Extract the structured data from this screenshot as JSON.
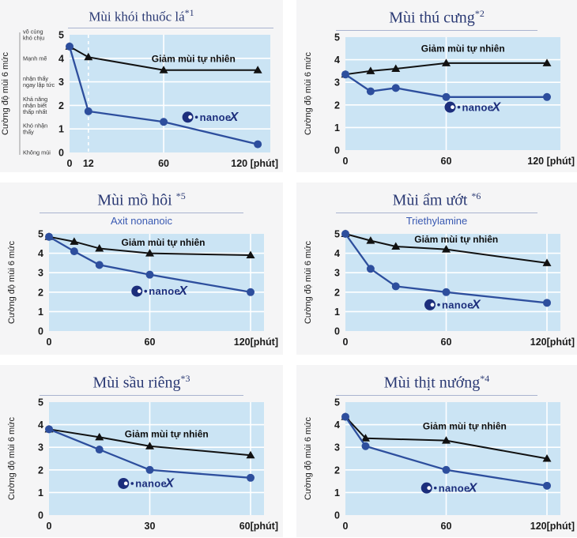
{
  "colors": {
    "page_background": "#ffffff",
    "panel_background": "#f5f5f6",
    "title": "#2b3a74",
    "title_underline": "#a9b3cf",
    "subtitle": "#3a5ab2",
    "plot_bg": "#cbe4f4",
    "grid": "#ffffff",
    "natural_series": "#111111",
    "nanoe_series": "#2d4e9d",
    "axis_text": "#1a1a1a",
    "scale_label_text": "#333333",
    "logo": "#1c2e7c"
  },
  "legend": {
    "natural_label": "Giảm mùi tự nhiên",
    "nanoe_label": "nanoe",
    "nanoe_x": "X"
  },
  "chart_data": [
    {
      "key": "cigarette-smoke",
      "type": "line",
      "title": "Mùi khói thuốc lá",
      "title_marker": "*1",
      "ylabel": "Cường độ mùi 6 mức",
      "ylim": [
        0,
        5
      ],
      "xlim": [
        0,
        128
      ],
      "y_ticks": [
        0,
        1,
        2,
        3,
        4,
        5
      ],
      "x_ticks": [
        {
          "x": 0,
          "label": "0"
        },
        {
          "x": 12,
          "label": "12"
        },
        {
          "x": 60,
          "label": "60"
        },
        {
          "x": 120,
          "label": "120 [phút]"
        }
      ],
      "v_gridlines": [
        {
          "x": 12,
          "dashed": true
        },
        {
          "x": 60,
          "dashed": false
        }
      ],
      "series": [
        {
          "name": "Giảm mùi tự nhiên",
          "marker": "triangle",
          "x": [
            0,
            12,
            60,
            120
          ],
          "values": [
            4.5,
            4.05,
            3.5,
            3.5
          ]
        },
        {
          "name": "nanoe X",
          "marker": "circle",
          "x": [
            0,
            12,
            60,
            120
          ],
          "values": [
            4.5,
            1.75,
            1.3,
            0.35
          ]
        }
      ],
      "natural_label_pos": {
        "x": 79,
        "y": 3.85
      },
      "logo_pos": {
        "x": 90,
        "y": 1.5
      },
      "scale_labels": [
        {
          "level": 5,
          "lines": [
            "vô cùng",
            "khó chịu"
          ]
        },
        {
          "level": 4,
          "lines": [
            "Mạnh mẽ"
          ]
        },
        {
          "level": 3,
          "lines": [
            "nhận thấy",
            "ngay lập tức"
          ]
        },
        {
          "level": 2,
          "lines": [
            "Khả năng",
            "nhận biết",
            "thấp nhất"
          ]
        },
        {
          "level": 1,
          "lines": [
            "Khó nhận",
            "thấy"
          ]
        },
        {
          "level": 0,
          "lines": [
            "Không mùi"
          ]
        }
      ]
    },
    {
      "key": "pet",
      "type": "line",
      "title": "Mùi thú cưng",
      "title_marker": "*2",
      "ylabel": "Cường độ mùi 6 mức",
      "ylim": [
        0,
        5
      ],
      "xlim": [
        0,
        128
      ],
      "y_ticks": [
        0,
        1,
        2,
        3,
        4,
        5
      ],
      "x_ticks": [
        {
          "x": 0,
          "label": "0"
        },
        {
          "x": 60,
          "label": "60"
        },
        {
          "x": 120,
          "label": "120 [phút]"
        }
      ],
      "v_gridlines": [
        {
          "x": 60,
          "dashed": false
        }
      ],
      "series": [
        {
          "name": "Giảm mùi tự nhiên",
          "marker": "triangle",
          "x": [
            0,
            15,
            30,
            60,
            120
          ],
          "values": [
            3.35,
            3.5,
            3.6,
            3.85,
            3.85
          ]
        },
        {
          "name": "nanoe X",
          "marker": "circle",
          "x": [
            0,
            15,
            30,
            60,
            120
          ],
          "values": [
            3.35,
            2.6,
            2.75,
            2.35,
            2.35
          ]
        }
      ],
      "natural_label_pos": {
        "x": 70,
        "y": 4.35
      },
      "logo_pos": {
        "x": 76,
        "y": 1.9
      }
    },
    {
      "key": "sweat",
      "type": "line",
      "title": "Mùi mồ hôi ",
      "title_marker": "*5",
      "subtitle": "Axit nonanoic",
      "ylabel": "Cường độ mùi 6 mức",
      "ylim": [
        0,
        5
      ],
      "xlim": [
        0,
        128
      ],
      "y_ticks": [
        0,
        1,
        2,
        3,
        4,
        5
      ],
      "x_ticks": [
        {
          "x": 0,
          "label": "0"
        },
        {
          "x": 60,
          "label": "60"
        },
        {
          "x": 120,
          "label": "120[phút]"
        }
      ],
      "v_gridlines": [
        {
          "x": 60,
          "dashed": false
        },
        {
          "x": 120,
          "dashed": false
        }
      ],
      "series": [
        {
          "name": "Giảm mùi tự nhiên",
          "marker": "triangle",
          "x": [
            0,
            15,
            30,
            60,
            120
          ],
          "values": [
            4.85,
            4.6,
            4.25,
            4.0,
            3.9
          ]
        },
        {
          "name": "nanoe X",
          "marker": "circle",
          "x": [
            0,
            15,
            30,
            60,
            120
          ],
          "values": [
            4.85,
            4.1,
            3.4,
            2.9,
            2.0
          ]
        }
      ],
      "natural_label_pos": {
        "x": 68,
        "y": 4.4
      },
      "logo_pos": {
        "x": 66,
        "y": 2.05
      }
    },
    {
      "key": "damp",
      "type": "line",
      "title": "Mùi ẩm ướt ",
      "title_marker": "*6",
      "subtitle": "Triethylamine",
      "ylabel": "Cường độ mùi 6 mức",
      "ylim": [
        0,
        5
      ],
      "xlim": [
        0,
        128
      ],
      "y_ticks": [
        0,
        1,
        2,
        3,
        4,
        5
      ],
      "x_ticks": [
        {
          "x": 0,
          "label": "0"
        },
        {
          "x": 60,
          "label": "60"
        },
        {
          "x": 120,
          "label": "120[phút]"
        }
      ],
      "v_gridlines": [
        {
          "x": 60,
          "dashed": false
        },
        {
          "x": 120,
          "dashed": false
        }
      ],
      "series": [
        {
          "name": "Giảm mùi tự nhiên",
          "marker": "triangle",
          "x": [
            0,
            15,
            30,
            60,
            120
          ],
          "values": [
            5.0,
            4.65,
            4.35,
            4.2,
            3.5
          ]
        },
        {
          "name": "nanoe X",
          "marker": "circle",
          "x": [
            0,
            15,
            30,
            60,
            120
          ],
          "values": [
            5.0,
            3.2,
            2.3,
            2.0,
            1.45
          ]
        }
      ],
      "natural_label_pos": {
        "x": 66,
        "y": 4.55
      },
      "logo_pos": {
        "x": 64,
        "y": 1.35
      }
    },
    {
      "key": "durian",
      "type": "line",
      "title": "Mùi sầu riêng",
      "title_marker": "*3",
      "ylabel": "Cường độ mùi 6 mức",
      "ylim": [
        0,
        5
      ],
      "xlim": [
        0,
        64
      ],
      "y_ticks": [
        0,
        1,
        2,
        3,
        4,
        5
      ],
      "x_ticks": [
        {
          "x": 0,
          "label": "0"
        },
        {
          "x": 30,
          "label": "30"
        },
        {
          "x": 60,
          "label": "60[phút]"
        }
      ],
      "v_gridlines": [
        {
          "x": 30,
          "dashed": false
        },
        {
          "x": 60,
          "dashed": false
        }
      ],
      "series": [
        {
          "name": "Giảm mùi tự nhiên",
          "marker": "triangle",
          "x": [
            0,
            15,
            30,
            60
          ],
          "values": [
            3.8,
            3.45,
            3.05,
            2.65
          ]
        },
        {
          "name": "nanoe X",
          "marker": "circle",
          "x": [
            0,
            15,
            30,
            60
          ],
          "values": [
            3.8,
            2.9,
            2.0,
            1.65
          ]
        }
      ],
      "natural_label_pos": {
        "x": 35,
        "y": 3.45
      },
      "logo_pos": {
        "x": 29,
        "y": 1.4
      }
    },
    {
      "key": "grilled-meat",
      "type": "line",
      "title": "Mùi thịt nướng",
      "title_marker": "*4",
      "ylabel": "Cường độ mùi 6 mức",
      "ylim": [
        0,
        5
      ],
      "xlim": [
        0,
        128
      ],
      "y_ticks": [
        0,
        1,
        2,
        3,
        4,
        5
      ],
      "x_ticks": [
        {
          "x": 0,
          "label": "0"
        },
        {
          "x": 60,
          "label": "60"
        },
        {
          "x": 120,
          "label": "120[phút]"
        }
      ],
      "v_gridlines": [
        {
          "x": 60,
          "dashed": false
        },
        {
          "x": 120,
          "dashed": false
        }
      ],
      "series": [
        {
          "name": "Giảm mùi tự nhiên",
          "marker": "triangle",
          "x": [
            0,
            12,
            60,
            120
          ],
          "values": [
            4.35,
            3.4,
            3.3,
            2.5
          ]
        },
        {
          "name": "nanoe X",
          "marker": "circle",
          "x": [
            0,
            12,
            60,
            120
          ],
          "values": [
            4.35,
            3.05,
            2.0,
            1.3
          ]
        }
      ],
      "natural_label_pos": {
        "x": 71,
        "y": 3.8
      },
      "logo_pos": {
        "x": 62,
        "y": 1.2
      }
    }
  ]
}
